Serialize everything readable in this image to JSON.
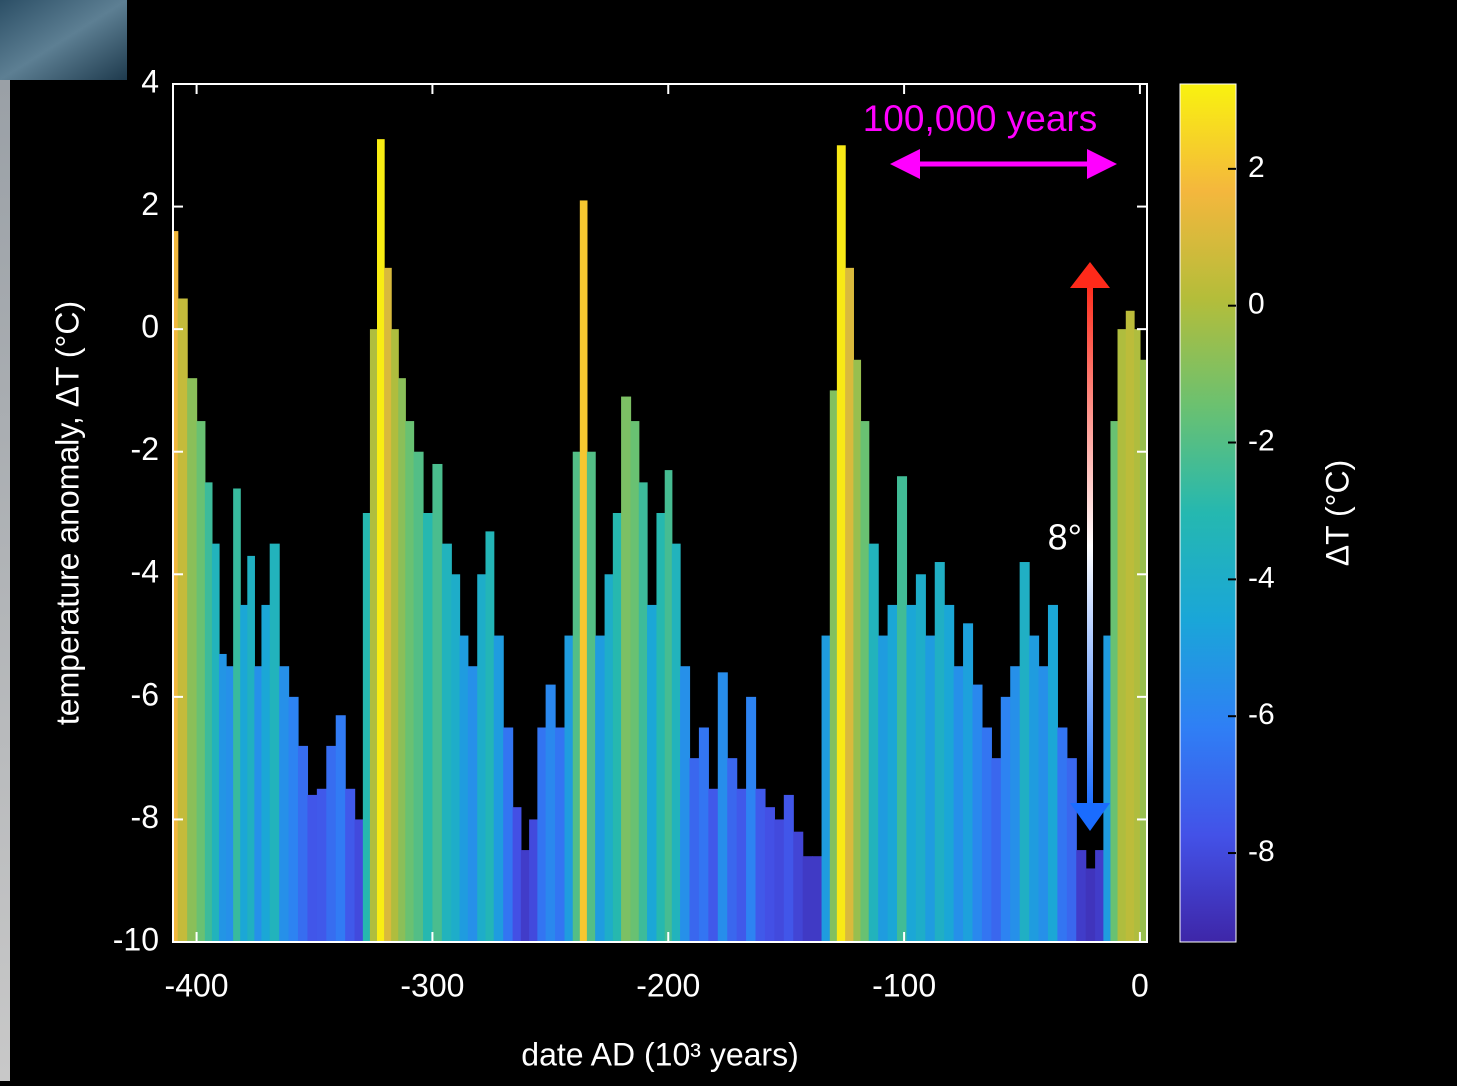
{
  "chart_data": {
    "type": "bar",
    "xlabel": "date AD (10³ years)",
    "ylabel": "temperature anomaly,   ΔT  (°C)",
    "x": [
      -410,
      -406,
      -402,
      -398,
      -395,
      -392,
      -389,
      -386,
      -383,
      -380,
      -377,
      -374,
      -371,
      -367,
      -363,
      -359,
      -355,
      -351,
      -347,
      -343,
      -339,
      -335,
      -331,
      -328,
      -325,
      -322,
      -319,
      -316,
      -313,
      -310,
      -306,
      -302,
      -298,
      -294,
      -290,
      -287,
      -283,
      -279,
      -276,
      -272,
      -268,
      -264,
      -261,
      -257,
      -254,
      -250,
      -246,
      -242,
      -239,
      -236,
      -233,
      -229,
      -225,
      -222,
      -218,
      -214,
      -211,
      -207,
      -203,
      -200,
      -197,
      -193,
      -189,
      -185,
      -181,
      -177,
      -173,
      -169,
      -165,
      -161,
      -157,
      -153,
      -149,
      -145,
      -141,
      -137,
      -133,
      -130,
      -127,
      -123,
      -120,
      -117,
      -113,
      -109,
      -105,
      -101,
      -97,
      -93,
      -89,
      -85,
      -81,
      -77,
      -73,
      -69,
      -65,
      -61,
      -57,
      -53,
      -49,
      -45,
      -41,
      -37,
      -33,
      -29,
      -25,
      -21,
      -17,
      -14,
      -11,
      -8,
      -4,
      -1,
      1
    ],
    "values": [
      1.6,
      0.5,
      -0.8,
      -1.5,
      -2.5,
      -3.5,
      -5.3,
      -5.5,
      -2.6,
      -4.5,
      -3.7,
      -5.5,
      -4.5,
      -3.5,
      -5.5,
      -6.0,
      -6.8,
      -7.6,
      -7.5,
      -6.8,
      -6.3,
      -7.5,
      -8.0,
      -3.0,
      0.0,
      3.1,
      1.0,
      0.0,
      -0.8,
      -1.5,
      -2.0,
      -3.0,
      -2.2,
      -3.5,
      -4.0,
      -5.0,
      -5.5,
      -4.0,
      -3.3,
      -5.0,
      -6.5,
      -7.8,
      -8.5,
      -8.0,
      -6.5,
      -5.8,
      -6.5,
      -5.0,
      -2.0,
      2.1,
      -2.0,
      -5.0,
      -4.0,
      -3.0,
      -1.1,
      -1.5,
      -2.5,
      -4.5,
      -3.0,
      -2.3,
      -3.5,
      -5.5,
      -7.0,
      -6.5,
      -7.5,
      -5.6,
      -7.0,
      -7.5,
      -6.0,
      -7.5,
      -7.8,
      -8.0,
      -7.6,
      -8.2,
      -8.6,
      -8.6,
      -5.0,
      -1.0,
      3.0,
      1.0,
      -0.5,
      -1.5,
      -3.5,
      -5.0,
      -4.5,
      -2.4,
      -4.5,
      -4.0,
      -5.0,
      -3.8,
      -4.5,
      -5.5,
      -4.8,
      -5.8,
      -6.5,
      -7.0,
      -6.0,
      -5.5,
      -3.8,
      -5.0,
      -5.5,
      -4.5,
      -6.5,
      -7.0,
      -8.5,
      -8.8,
      -8.5,
      -5.0,
      -1.5,
      0.0,
      0.3,
      0.0,
      -0.5
    ],
    "xlim": [
      -410,
      3
    ],
    "ylim": [
      -10,
      4
    ],
    "xticks": [
      -400,
      -300,
      -200,
      -100,
      0
    ],
    "yticks": [
      -10,
      -8,
      -6,
      -4,
      -2,
      0,
      2,
      4
    ],
    "colormap": [
      "#3e26a8",
      "#4352e8",
      "#2f7ff5",
      "#1aa6d8",
      "#25b8b0",
      "#6bc170",
      "#b4bd3a",
      "#f4b73d",
      "#f9f20f"
    ],
    "colorbar": {
      "label": "ΔT  (°C)",
      "clim": [
        -9.3,
        3.24
      ],
      "ticks": [
        -8,
        -6,
        -4,
        -2,
        0,
        2
      ]
    },
    "annotations": [
      "100,000 years",
      "8°"
    ]
  }
}
